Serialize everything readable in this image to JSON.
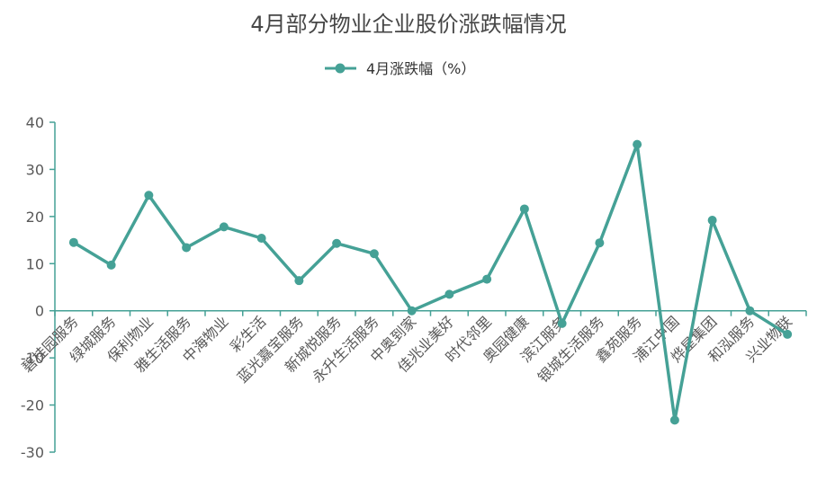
{
  "chart_data": {
    "type": "line",
    "title": "4月部分物业企业股价涨跌幅情况",
    "xlabel": "",
    "ylabel": "",
    "ylim": [
      -30,
      40
    ],
    "yticks": [
      40,
      30,
      20,
      10,
      0,
      -10,
      -20,
      -30
    ],
    "categories": [
      "碧桂园服务",
      "绿城服务",
      "保利物业",
      "雅生活服务",
      "中海物业",
      "彩生活",
      "蓝光嘉宝服务",
      "新城悦服务",
      "永升生活服务",
      "中奥到家",
      "佳兆业美好",
      "时代邻里",
      "奥园健康",
      "滨江服务",
      "银城生活服务",
      "鑫苑服务",
      "浦江中国",
      "烨星集团",
      "和泓服务",
      "兴业物联"
    ],
    "series": [
      {
        "name": "4月涨跌幅（%）",
        "color": "#45a196",
        "values": [
          14.5,
          9.7,
          24.5,
          13.4,
          17.8,
          15.4,
          6.4,
          14.3,
          12.1,
          0.0,
          3.5,
          6.7,
          21.6,
          -2.7,
          14.4,
          35.3,
          -23.2,
          19.2,
          0.0,
          -5.0
        ]
      }
    ],
    "grid": false,
    "legend": "top"
  }
}
